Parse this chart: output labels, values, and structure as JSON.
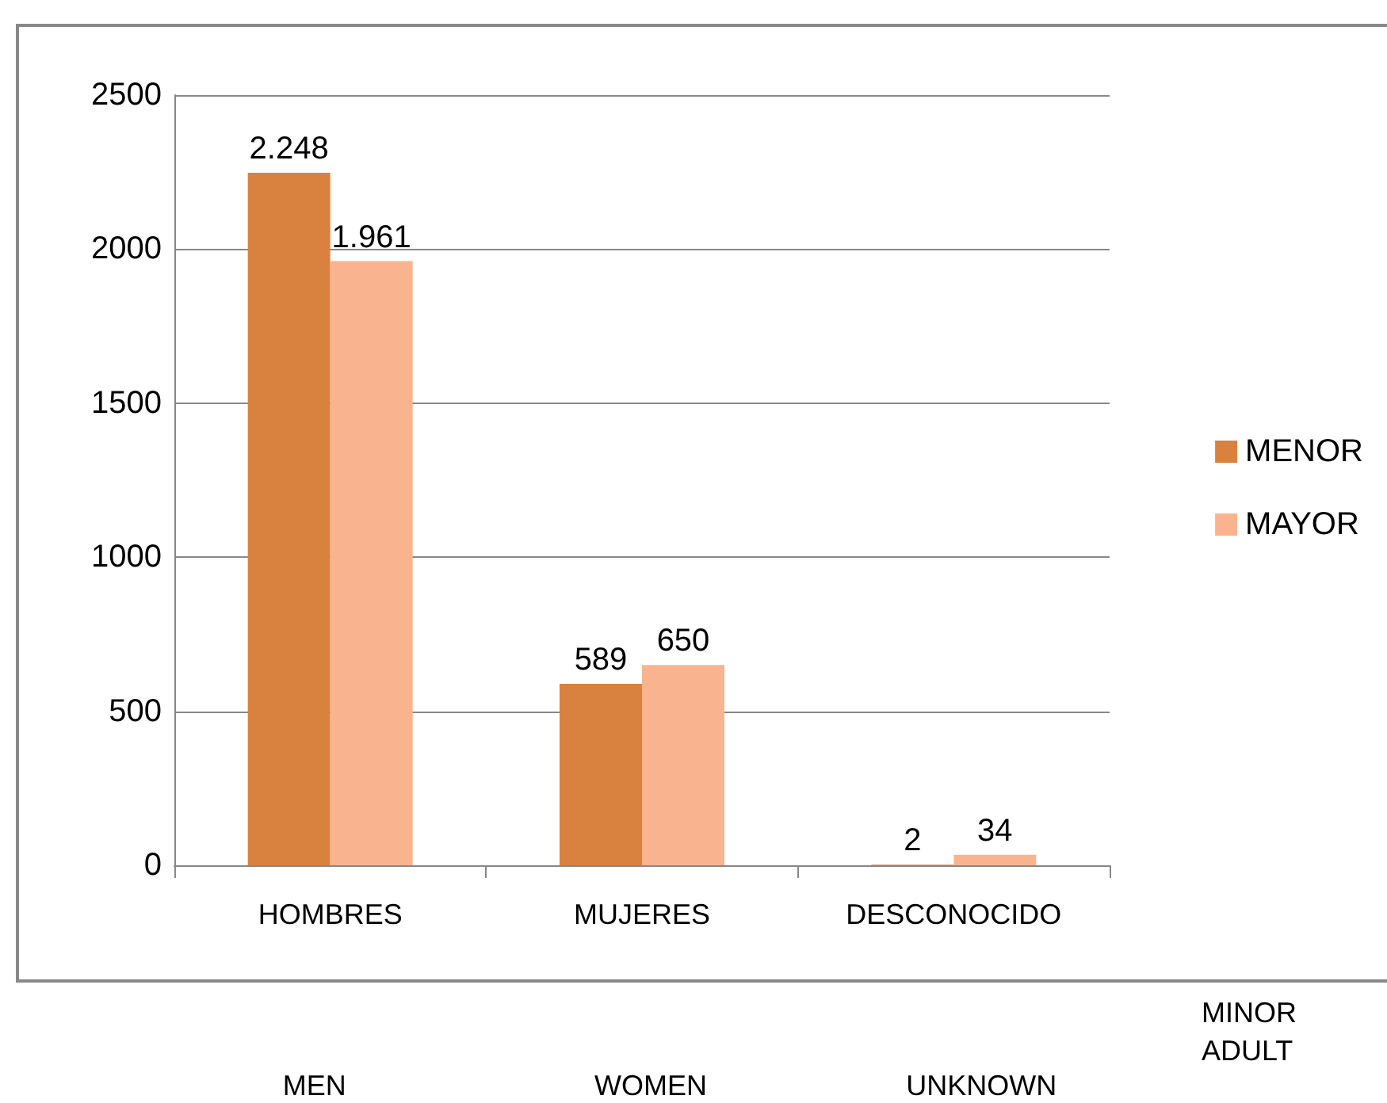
{
  "chart_data": {
    "type": "bar",
    "categories": [
      "HOMBRES",
      "MUJERES",
      "DESCONOCIDO"
    ],
    "series": [
      {
        "name": "MENOR",
        "color": "#d9813f",
        "values": [
          2248,
          589,
          2
        ],
        "value_labels": [
          "2.248",
          "589",
          "2"
        ]
      },
      {
        "name": "MAYOR",
        "color": "#f9b48f",
        "values": [
          1961,
          650,
          34
        ],
        "value_labels": [
          "1.961",
          "650",
          "34"
        ]
      }
    ],
    "ylim": [
      0,
      2500
    ],
    "yticks": [
      0,
      500,
      1000,
      1500,
      2000,
      2500
    ],
    "grid": "y",
    "legend": "right",
    "annotations": [
      "MEN",
      "WOMEN",
      "UNKNOWN",
      "MINOR",
      "ADULT"
    ]
  }
}
